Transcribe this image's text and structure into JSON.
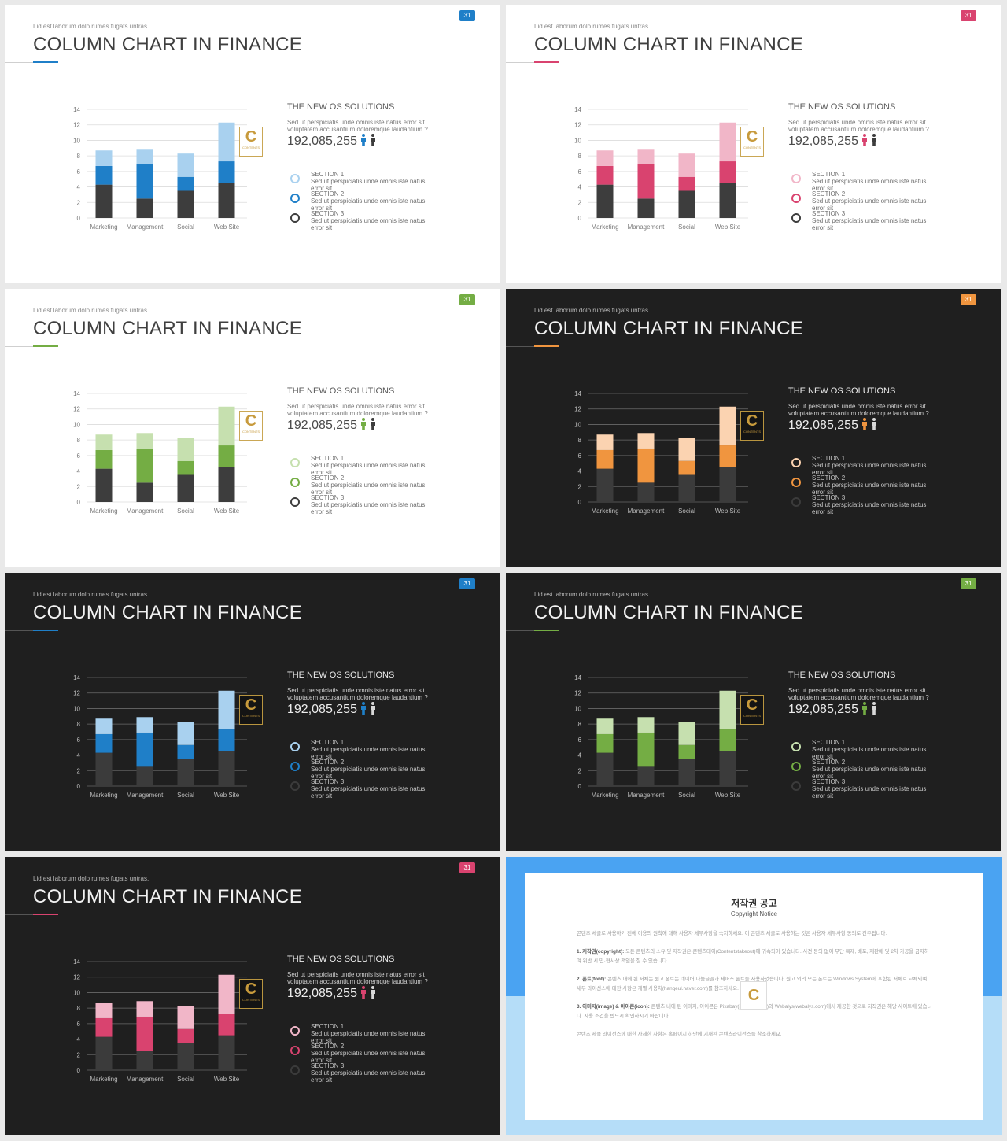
{
  "slides": [
    {
      "theme": "light",
      "page": "31",
      "subtitle": "Lid est laborum dolo rumes fugats untras.",
      "title": "COLUMN CHART IN FINANCE",
      "colors": {
        "accent": "#1f7fc8",
        "light": "#a9d1ef",
        "dark": "#3d3d3d",
        "person": "#1f7fc8",
        "person2": "#3d3d3d"
      }
    },
    {
      "theme": "light",
      "page": "31",
      "subtitle": "Lid est laborum dolo rumes fugats untras.",
      "title": "COLUMN CHART IN FINANCE",
      "colors": {
        "accent": "#d9436f",
        "light": "#f1b6c8",
        "dark": "#3d3d3d",
        "person": "#d9436f",
        "person2": "#3d3d3d"
      }
    },
    {
      "theme": "light",
      "page": "31",
      "subtitle": "Lid est laborum dolo rumes fugats untras.",
      "title": "COLUMN CHART IN FINANCE",
      "colors": {
        "accent": "#74ad44",
        "light": "#c6e0af",
        "dark": "#3d3d3d",
        "person": "#74ad44",
        "person2": "#3d3d3d"
      }
    },
    {
      "theme": "dark",
      "page": "31",
      "subtitle": "Lid est laborum dolo rumes fugats untras.",
      "title": "COLUMN CHART IN FINANCE",
      "colors": {
        "accent": "#f0953f",
        "light": "#fbd3b1",
        "dark": "#3b3b3b",
        "person": "#f0953f",
        "person2": "#d8d8d8"
      }
    },
    {
      "theme": "dark",
      "page": "31",
      "subtitle": "Lid est laborum dolo rumes fugats untras.",
      "title": "COLUMN CHART IN FINANCE",
      "colors": {
        "accent": "#1f7fc8",
        "light": "#a9d1ef",
        "dark": "#3b3b3b",
        "person": "#1f7fc8",
        "person2": "#d8d8d8"
      }
    },
    {
      "theme": "dark",
      "page": "31",
      "subtitle": "Lid est laborum dolo rumes fugats untras.",
      "title": "COLUMN CHART IN FINANCE",
      "colors": {
        "accent": "#74ad44",
        "light": "#c6e0af",
        "dark": "#3b3b3b",
        "person": "#74ad44",
        "person2": "#d8d8d8"
      }
    },
    {
      "theme": "dark",
      "page": "31",
      "subtitle": "Lid est laborum dolo rumes fugats untras.",
      "title": "COLUMN CHART IN FINANCE",
      "colors": {
        "accent": "#d9436f",
        "light": "#f1b6c8",
        "dark": "#3b3b3b",
        "person": "#d9436f",
        "person2": "#d8d8d8"
      }
    }
  ],
  "info": {
    "heading": "THE NEW OS SOLUTIONS",
    "desc": "Sed ut perspiciatis unde omnis iste natus error sit voluptatem accusantium doloremque laudantium ?",
    "number": "192,085,255"
  },
  "sections": [
    {
      "title": "SECTION 1",
      "desc": "Sed ut perspiciatis unde omnis iste natus error sit"
    },
    {
      "title": "SECTION 2",
      "desc": "Sed ut perspiciatis unde omnis iste natus error sit"
    },
    {
      "title": "SECTION 3",
      "desc": "Sed ut perspiciatis unde omnis iste natus error sit"
    }
  ],
  "logo": {
    "letter": "C",
    "tagline": "CONTENTS"
  },
  "chart_data": {
    "type": "bar",
    "stacked": true,
    "categories": [
      "Marketing",
      "Management",
      "Social",
      "Web Site"
    ],
    "series": [
      {
        "values": [
          4.3,
          2.5,
          3.5,
          4.5
        ]
      },
      {
        "values": [
          2.4,
          4.4,
          1.8,
          2.8
        ]
      },
      {
        "values": [
          2.0,
          2.0,
          3.0,
          5.0
        ]
      }
    ],
    "ylim": [
      0,
      14
    ],
    "yticks": [
      "0",
      "2",
      "4",
      "6",
      "8",
      "10",
      "12",
      "14"
    ],
    "grid": true
  },
  "notice": {
    "title": "저작권 공고",
    "subtitle": "Copyright Notice",
    "paragraphs": [
      {
        "lead": "",
        "text": "콘텐츠 세클로 사용하기 전에 이용의 원칙에 대해 사용자 세부사항을 숙지하세요. 이 콘텐츠 세클로 사용하는 것은 사용자 세부사항 동의로 간주됩니다."
      },
      {
        "lead": "1. 저작권(copyright):",
        "text": " 모든 콘텐츠의 소유 및 저작권은 콘텐츠데이(Contentstakeout)에 귀속되어 있습니다. 사전 동의 없이 무단 복제, 배포, 재판매 및 2차 가공을 금지하며 위반 시 민·형사상 책임을 질 수 있습니다."
      },
      {
        "lead": "2. 폰트(font):",
        "text": " 콘텐츠 내에 된 서체는 원고 폰트는 네이버 나눔글꼴과 세퍼스 폰트를 사용하였습니다. 원고 외의 모든 폰트는 Windows System에 포함된 서체로 교체되며 세부 라이선스에 대한 사항은 개별 사용처(hangeul.naver.com)를 참조하세요."
      },
      {
        "lead": "3. 이미지(image) & 아이콘(icon):",
        "text": " 콘텐츠 내에 된 이미지, 아이콘은 Pixabay(pixabay.com)와 Webalys(webalys.com)에서 제공한 것으로 저작권은 해당 사이트에 있습니다. 사용 조건을 반드시 확인하시기 바랍니다."
      },
      {
        "lead": "",
        "text": "콘텐츠 세클 라이선스에 대한 자세한 사항은 홈페이지 하단에 기재된 콘텐츠라이선스를 참조하세요."
      }
    ]
  }
}
